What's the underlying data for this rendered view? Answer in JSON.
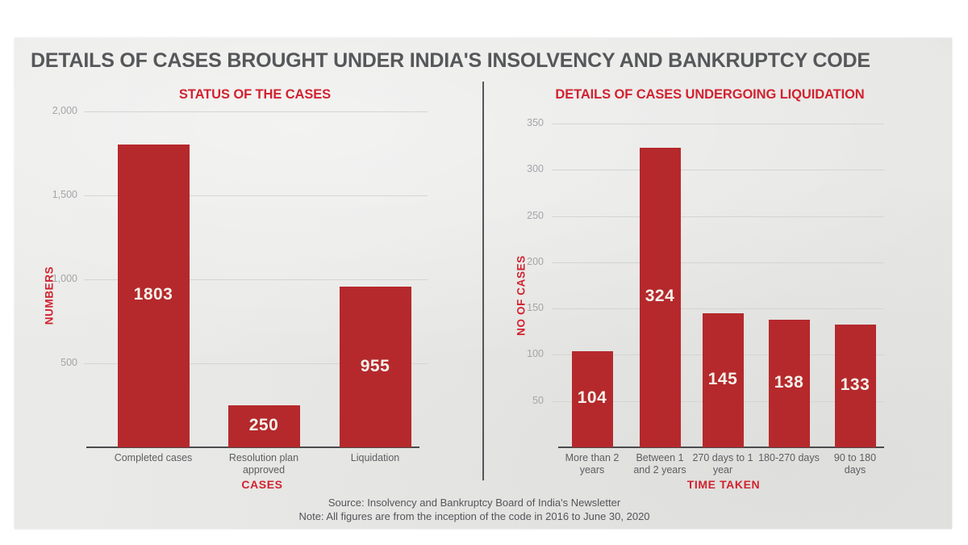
{
  "page_title": "DETAILS OF CASES BROUGHT UNDER INDIA'S INSOLVENCY AND BANKRUPTCY CODE",
  "footer": {
    "source": "Source: Insolvency and Bankruptcy Board of India's Newsletter",
    "note": "Note: All figures are from the inception of the code in 2016 to June 30, 2020"
  },
  "colors": {
    "bar_red": "#b5292c",
    "accent_red": "#d12230",
    "title_gray": "#56575a",
    "card_bg": "#e8e8e6",
    "gridline": "#d4d4d2",
    "ytick_gray": "#a4a5a8",
    "xtick_gray": "#5d5e61",
    "value_label": "#f4f1ea"
  },
  "chart_data": [
    {
      "type": "bar",
      "title": "STATUS OF THE CASES",
      "xlabel": "CASES",
      "ylabel": "NUMBERS",
      "categories": [
        "Completed cases",
        "Resolution plan approved",
        "Liquidation"
      ],
      "values": [
        1803,
        250,
        955
      ],
      "data_labels": [
        "1803",
        "250",
        "955"
      ],
      "yticks": [
        "2,000",
        "1,500",
        "1,000",
        "500"
      ],
      "ylim": [
        0,
        2000
      ],
      "grid": true,
      "legend": "none"
    },
    {
      "type": "bar",
      "title": "DETAILS OF CASES UNDERGOING LIQUIDATION",
      "xlabel": "TIME TAKEN",
      "ylabel": "NO OF CASES",
      "categories": [
        "More than 2 years",
        "Between 1 and 2 years",
        "270 days to 1 year",
        "180-270 days",
        "90 to 180 days"
      ],
      "values": [
        104,
        324,
        145,
        138,
        133
      ],
      "data_labels": [
        "104",
        "324",
        "145",
        "138",
        "133"
      ],
      "yticks": [
        "350",
        "300",
        "250",
        "200",
        "150",
        "100",
        "50"
      ],
      "ylim": [
        0,
        350
      ],
      "grid": true,
      "legend": "none"
    }
  ]
}
